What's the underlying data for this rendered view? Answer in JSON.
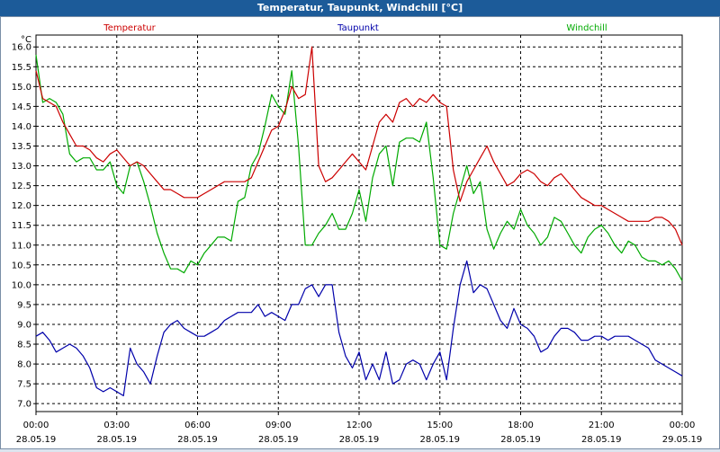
{
  "window": {
    "title": "Temperatur, Taupunkt, Windchill [°C]"
  },
  "chart_data": {
    "type": "line",
    "title": "Temperatur, Taupunkt, Windchill [°C]",
    "ylabel": "°C",
    "xlabel": "",
    "ylim": [
      6.8,
      16.3
    ],
    "y_ticks": [
      "16.0",
      "15.5",
      "15.0",
      "14.5",
      "14.0",
      "13.5",
      "13.0",
      "12.5",
      "12.0",
      "11.5",
      "11.0",
      "10.5",
      "10.0",
      "9.5",
      "9.0",
      "8.5",
      "8.0",
      "7.5",
      "7.0"
    ],
    "x_ticks": [
      {
        "time": "00:00",
        "date": "28.05.19"
      },
      {
        "time": "03:00",
        "date": "28.05.19"
      },
      {
        "time": "06:00",
        "date": "28.05.19"
      },
      {
        "time": "09:00",
        "date": "28.05.19"
      },
      {
        "time": "12:00",
        "date": "28.05.19"
      },
      {
        "time": "15:00",
        "date": "28.05.19"
      },
      {
        "time": "18:00",
        "date": "28.05.19"
      },
      {
        "time": "21:00",
        "date": "28.05.19"
      },
      {
        "time": "00:00",
        "date": "29.05.19"
      }
    ],
    "x_range_hours": [
      0,
      24
    ],
    "grid": true,
    "legend_position": "top",
    "series": [
      {
        "name": "Temperatur",
        "color": "#cc0000",
        "x": [
          0,
          0.25,
          0.5,
          0.75,
          1,
          1.25,
          1.5,
          1.75,
          2,
          2.25,
          2.5,
          2.75,
          3,
          3.25,
          3.5,
          3.75,
          4,
          4.25,
          4.5,
          4.75,
          5,
          5.25,
          5.5,
          5.75,
          6,
          6.25,
          6.5,
          6.75,
          7,
          7.25,
          7.5,
          7.75,
          8,
          8.25,
          8.5,
          8.75,
          9,
          9.25,
          9.5,
          9.75,
          10,
          10.25,
          10.5,
          10.75,
          11,
          11.25,
          11.5,
          11.75,
          12,
          12.25,
          12.5,
          12.75,
          13,
          13.25,
          13.5,
          13.75,
          14,
          14.25,
          14.5,
          14.75,
          15,
          15.25,
          15.5,
          15.75,
          16,
          16.25,
          16.5,
          16.75,
          17,
          17.25,
          17.5,
          17.75,
          18,
          18.25,
          18.5,
          18.75,
          19,
          19.25,
          19.5,
          19.75,
          20,
          20.25,
          20.5,
          20.75,
          21,
          21.25,
          21.5,
          21.75,
          22,
          22.25,
          22.5,
          22.75,
          23,
          23.25,
          23.5,
          23.75,
          24
        ],
        "values": [
          15.4,
          14.7,
          14.6,
          14.5,
          14.1,
          13.8,
          13.5,
          13.5,
          13.4,
          13.2,
          13.1,
          13.3,
          13.4,
          13.2,
          13.0,
          13.1,
          13.0,
          12.8,
          12.6,
          12.4,
          12.4,
          12.3,
          12.2,
          12.2,
          12.2,
          12.3,
          12.4,
          12.5,
          12.6,
          12.6,
          12.6,
          12.6,
          12.7,
          13.1,
          13.5,
          13.9,
          14.0,
          14.4,
          15.0,
          14.7,
          14.8,
          16.0,
          13.0,
          12.6,
          12.7,
          12.9,
          13.1,
          13.3,
          13.1,
          12.9,
          13.5,
          14.1,
          14.3,
          14.1,
          14.6,
          14.7,
          14.5,
          14.7,
          14.6,
          14.8,
          14.6,
          14.5,
          12.9,
          12.1,
          12.6,
          12.9,
          13.2,
          13.5,
          13.1,
          12.8,
          12.5,
          12.6,
          12.8,
          12.9,
          12.8,
          12.6,
          12.5,
          12.7,
          12.8,
          12.6,
          12.4,
          12.2,
          12.1,
          12.0,
          12.0,
          11.9,
          11.8,
          11.7,
          11.6,
          11.6,
          11.6,
          11.6,
          11.7,
          11.7,
          11.6,
          11.4,
          11.0
        ]
      },
      {
        "name": "Taupunkt",
        "color": "#0000aa",
        "x": [
          0,
          0.25,
          0.5,
          0.75,
          1,
          1.25,
          1.5,
          1.75,
          2,
          2.25,
          2.5,
          2.75,
          3,
          3.25,
          3.5,
          3.75,
          4,
          4.25,
          4.5,
          4.75,
          5,
          5.25,
          5.5,
          5.75,
          6,
          6.25,
          6.5,
          6.75,
          7,
          7.25,
          7.5,
          7.75,
          8,
          8.25,
          8.5,
          8.75,
          9,
          9.25,
          9.5,
          9.75,
          10,
          10.25,
          10.5,
          10.75,
          11,
          11.25,
          11.5,
          11.75,
          12,
          12.25,
          12.5,
          12.75,
          13,
          13.25,
          13.5,
          13.75,
          14,
          14.25,
          14.5,
          14.75,
          15,
          15.25,
          15.5,
          15.75,
          16,
          16.25,
          16.5,
          16.75,
          17,
          17.25,
          17.5,
          17.75,
          18,
          18.25,
          18.5,
          18.75,
          19,
          19.25,
          19.5,
          19.75,
          20,
          20.25,
          20.5,
          20.75,
          21,
          21.25,
          21.5,
          21.75,
          22,
          22.25,
          22.5,
          22.75,
          23,
          23.25,
          23.5,
          23.75,
          24
        ],
        "values": [
          8.7,
          8.8,
          8.6,
          8.3,
          8.4,
          8.5,
          8.4,
          8.2,
          7.9,
          7.4,
          7.3,
          7.4,
          7.3,
          7.2,
          8.4,
          8.0,
          7.8,
          7.5,
          8.2,
          8.8,
          9.0,
          9.1,
          8.9,
          8.8,
          8.7,
          8.7,
          8.8,
          8.9,
          9.1,
          9.2,
          9.3,
          9.3,
          9.3,
          9.5,
          9.2,
          9.3,
          9.2,
          9.1,
          9.5,
          9.5,
          9.9,
          10.0,
          9.7,
          10.0,
          10.0,
          8.8,
          8.2,
          7.9,
          8.3,
          7.6,
          8.0,
          7.6,
          8.3,
          7.5,
          7.6,
          8.0,
          8.1,
          8.0,
          7.6,
          8.0,
          8.3,
          7.6,
          8.9,
          10.0,
          10.6,
          9.8,
          10.0,
          9.9,
          9.5,
          9.1,
          8.9,
          9.4,
          9.0,
          8.9,
          8.7,
          8.3,
          8.4,
          8.7,
          8.9,
          8.9,
          8.8,
          8.6,
          8.6,
          8.7,
          8.7,
          8.6,
          8.7,
          8.7,
          8.7,
          8.6,
          8.5,
          8.4,
          8.1,
          8.0,
          7.9,
          7.8,
          7.7
        ]
      },
      {
        "name": "Windchill",
        "color": "#00aa00",
        "x": [
          0,
          0.25,
          0.5,
          0.75,
          1,
          1.25,
          1.5,
          1.75,
          2,
          2.25,
          2.5,
          2.75,
          3,
          3.25,
          3.5,
          3.75,
          4,
          4.25,
          4.5,
          4.75,
          5,
          5.25,
          5.5,
          5.75,
          6,
          6.25,
          6.5,
          6.75,
          7,
          7.25,
          7.5,
          7.75,
          8,
          8.25,
          8.5,
          8.75,
          9,
          9.25,
          9.5,
          9.75,
          10,
          10.25,
          10.5,
          10.75,
          11,
          11.25,
          11.5,
          11.75,
          12,
          12.25,
          12.5,
          12.75,
          13,
          13.25,
          13.5,
          13.75,
          14,
          14.25,
          14.5,
          14.75,
          15,
          15.25,
          15.5,
          15.75,
          16,
          16.25,
          16.5,
          16.75,
          17,
          17.25,
          17.5,
          17.75,
          18,
          18.25,
          18.5,
          18.75,
          19,
          19.25,
          19.5,
          19.75,
          20,
          20.25,
          20.5,
          20.75,
          21,
          21.25,
          21.5,
          21.75,
          22,
          22.25,
          22.5,
          22.75,
          23,
          23.25,
          23.5,
          23.75,
          24
        ],
        "values": [
          15.8,
          14.6,
          14.7,
          14.6,
          14.3,
          13.3,
          13.1,
          13.2,
          13.2,
          12.9,
          12.9,
          13.1,
          12.5,
          12.3,
          13.0,
          13.1,
          12.6,
          12.0,
          11.3,
          10.8,
          10.4,
          10.4,
          10.3,
          10.6,
          10.5,
          10.8,
          11.0,
          11.2,
          11.2,
          11.1,
          12.1,
          12.2,
          13.0,
          13.3,
          14.0,
          14.8,
          14.5,
          14.3,
          15.4,
          13.5,
          11.0,
          11.0,
          11.3,
          11.5,
          11.8,
          11.4,
          11.4,
          11.8,
          12.4,
          11.6,
          12.7,
          13.3,
          13.5,
          12.5,
          13.6,
          13.7,
          13.7,
          13.6,
          14.1,
          12.7,
          11.0,
          10.9,
          11.8,
          12.4,
          13.0,
          12.3,
          12.6,
          11.4,
          10.9,
          11.3,
          11.6,
          11.4,
          11.9,
          11.5,
          11.3,
          11.0,
          11.2,
          11.7,
          11.6,
          11.3,
          11.0,
          10.8,
          11.2,
          11.4,
          11.5,
          11.3,
          11.0,
          10.8,
          11.1,
          11.0,
          10.7,
          10.6,
          10.6,
          10.5,
          10.6,
          10.4,
          10.1
        ]
      }
    ]
  }
}
